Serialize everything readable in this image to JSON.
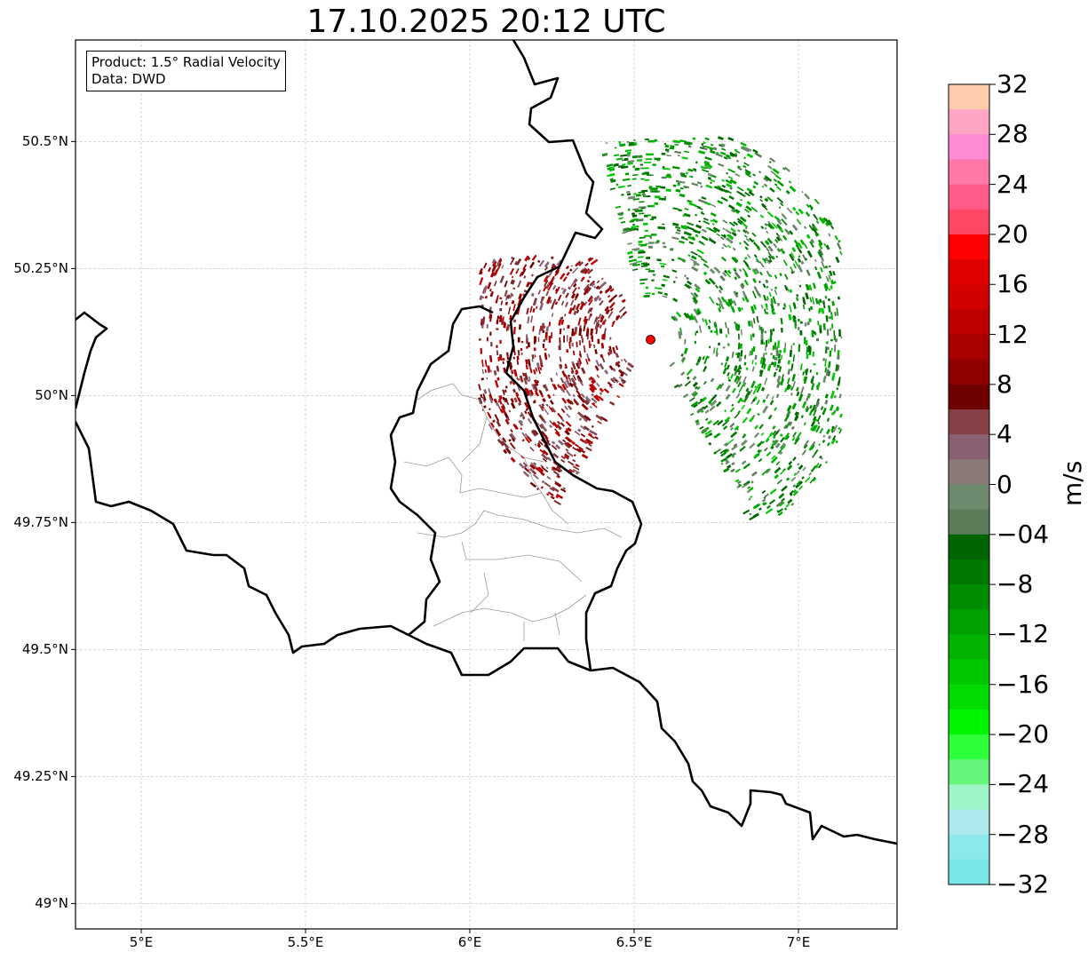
{
  "title": "17.10.2025 20:12 UTC",
  "info": {
    "product": "Product: 1.5° Radial Velocity",
    "source": "Data: DWD"
  },
  "lat_axis": {
    "labels": [
      {
        "value": 50.5,
        "text": "50.5°N"
      },
      {
        "value": 50.25,
        "text": "50.25°N"
      },
      {
        "value": 50.0,
        "text": "50°N"
      },
      {
        "value": 49.75,
        "text": "49.75°N"
      },
      {
        "value": 49.5,
        "text": "49.5°N"
      },
      {
        "value": 49.25,
        "text": "49.25°N"
      },
      {
        "value": 49.0,
        "text": "49°N"
      }
    ],
    "range": [
      48.95,
      50.7
    ]
  },
  "lon_axis": {
    "labels": [
      {
        "value": 5.0,
        "text": "5°E"
      },
      {
        "value": 5.5,
        "text": "5.5°E"
      },
      {
        "value": 6.0,
        "text": "6°E"
      },
      {
        "value": 6.5,
        "text": "6.5°E"
      },
      {
        "value": 7.0,
        "text": "7°E"
      }
    ],
    "range": [
      4.8,
      7.3
    ]
  },
  "grid": true,
  "radar_site": {
    "lon": 6.55,
    "lat": 50.11,
    "color": "#ff0000"
  },
  "velocity_field": {
    "description_free": true,
    "outbound_sector": {
      "lon_min": 6.0,
      "lon_max": 6.5,
      "lat_min": 49.72,
      "lat_max": 50.28,
      "dominant_value": 12
    },
    "inbound_sector": {
      "lon_min": 6.5,
      "lon_max": 7.13,
      "lat_min": 49.75,
      "lat_max": 50.51,
      "dominant_value": -8
    }
  },
  "colorbar": {
    "unit": "m/s",
    "min": -32,
    "max": 32,
    "ticks": [
      "32",
      "28",
      "24",
      "20",
      "16",
      "12",
      "8",
      "4",
      "0",
      "−04",
      "−8",
      "−12",
      "−16",
      "−20",
      "−24",
      "−28",
      "−32"
    ],
    "tick_values": [
      32,
      28,
      24,
      20,
      16,
      12,
      8,
      4,
      0,
      -4,
      -8,
      -12,
      -16,
      -20,
      -24,
      -28,
      -32
    ],
    "colors_top_to_bottom": [
      "#ffcbad",
      "#ffa6c5",
      "#ff8ad6",
      "#ff78a8",
      "#ff5c89",
      "#ff4664",
      "#ff0000",
      "#e10000",
      "#d30000",
      "#be0000",
      "#a80000",
      "#910000",
      "#700000",
      "#864046",
      "#896172",
      "#8a7a78",
      "#6e8a6e",
      "#5c7c5a",
      "#006400",
      "#007800",
      "#008c00",
      "#00a000",
      "#00b400",
      "#00c800",
      "#00dc00",
      "#00f500",
      "#2dff3a",
      "#64f57a",
      "#9ef5c8",
      "#aee8ec",
      "#8ce8ea",
      "#78e5e6"
    ]
  }
}
